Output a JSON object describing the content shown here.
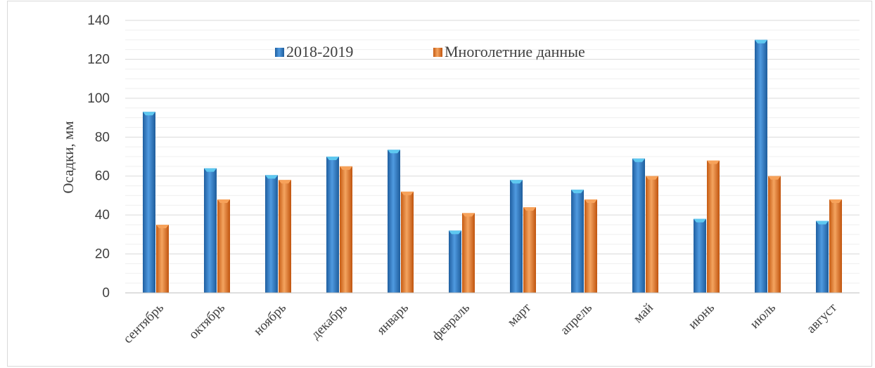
{
  "chart_data": {
    "type": "bar",
    "ylabel": "Осадки, мм",
    "xlabel": "",
    "ylim": [
      0,
      140
    ],
    "yticks": [
      0,
      20,
      40,
      60,
      80,
      100,
      120,
      140
    ],
    "grid": true,
    "legend_position": "top-center",
    "categories": [
      "сентябрь",
      "октябрь",
      "ноябрь",
      "декабрь",
      "январь",
      "февраль",
      "март",
      "апрель",
      "май",
      "июнь",
      "июль",
      "август"
    ],
    "series": [
      {
        "name": "2018-2019",
        "color": "#2e75b6",
        "values": [
          93,
          64,
          60.5,
          70,
          73.5,
          32,
          58,
          53,
          69,
          38,
          130,
          37
        ]
      },
      {
        "name": "Многолетние данные",
        "color": "#ed7d31",
        "values": [
          35,
          48,
          58,
          65,
          52,
          41,
          44,
          48,
          60,
          68,
          60,
          48
        ]
      }
    ]
  }
}
